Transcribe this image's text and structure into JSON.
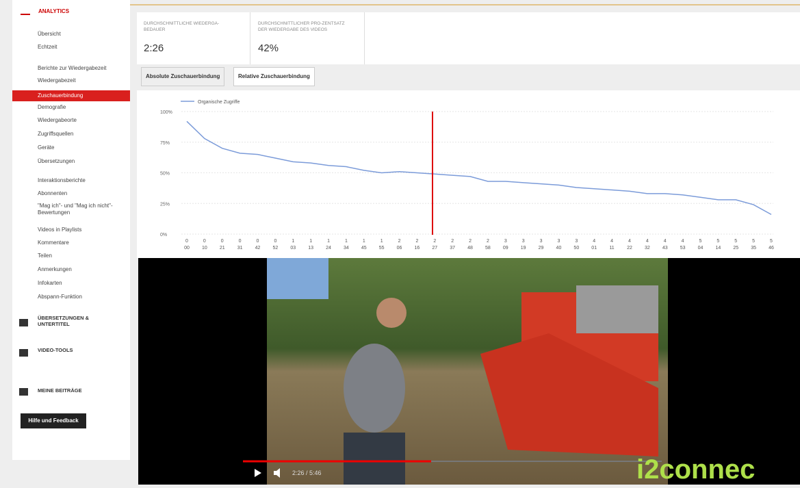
{
  "sidebar": {
    "title": "ANALYTICS",
    "items": [
      "Übersicht",
      "Echtzeit",
      "Berichte zur Wiedergabezeit",
      "Wiedergabezeit",
      "Zuschauerbindung",
      "Demografie",
      "Wiedergabeorte",
      "Zugriffsquellen",
      "Geräte",
      "Übersetzungen",
      "Interaktionsberichte",
      "Abonnenten",
      "\"Mag ich\"- und \"Mag ich nicht\"-Bewertungen",
      "Videos in Playlists",
      "Kommentare",
      "Teilen",
      "Anmerkungen",
      "Infokarten",
      "Abspann-Funktion"
    ],
    "sections": [
      "ÜBERSETZUNGEN & UNTERTITEL",
      "VIDEO-TOOLS",
      "MEINE BEITRÄGE"
    ],
    "button": "Hilfe und Feedback"
  },
  "metrics": [
    {
      "label": "DURCHSCHNITTLICHE WIEDERGA-BEDAUER",
      "value": "2:26"
    },
    {
      "label": "DURCHSCHNITTLICHER PRO-ZENTSATZ DER WIEDERGABE DES VIDEOS",
      "value": "42%"
    }
  ],
  "tabs": [
    "Absolute Zuschauerbindung",
    "Relative Zuschauerbindung"
  ],
  "chart_data": {
    "type": "line",
    "categories": [
      "0\n00",
      "0\n10",
      "0\n21",
      "0\n31",
      "0\n42",
      "0\n52",
      "1\n03",
      "1\n13",
      "1\n24",
      "1\n34",
      "1\n45",
      "1\n55",
      "2\n06",
      "2\n16",
      "2\n27",
      "2\n37",
      "2\n48",
      "2\n58",
      "3\n09",
      "3\n19",
      "3\n29",
      "3\n40",
      "3\n50",
      "4\n01",
      "4\n11",
      "4\n22",
      "4\n32",
      "4\n43",
      "4\n53",
      "5\n04",
      "5\n14",
      "5\n25",
      "5\n35",
      "5\n46"
    ],
    "series": [
      {
        "name": "Organische Zugriffe",
        "color": "#7b9bd9",
        "values": [
          92,
          78,
          70,
          66,
          65,
          62,
          59,
          58,
          56,
          55,
          52,
          50,
          51,
          50,
          49,
          48,
          47,
          43,
          43,
          42,
          41,
          40,
          38,
          37,
          36,
          35,
          33,
          33,
          32,
          30,
          28,
          28,
          24,
          16
        ]
      }
    ],
    "ylim": [
      0,
      100
    ],
    "yticks": [
      {
        "value": 0,
        "label": "0%"
      },
      {
        "value": 25,
        "label": "25%"
      },
      {
        "value": 50,
        "label": "50%"
      },
      {
        "value": 75,
        "label": "75%"
      },
      {
        "value": 100,
        "label": "100%"
      }
    ],
    "grid": true,
    "legend": "top-left"
  },
  "video": {
    "time": "2:26 / 5:46"
  },
  "watermark": "i2connec"
}
